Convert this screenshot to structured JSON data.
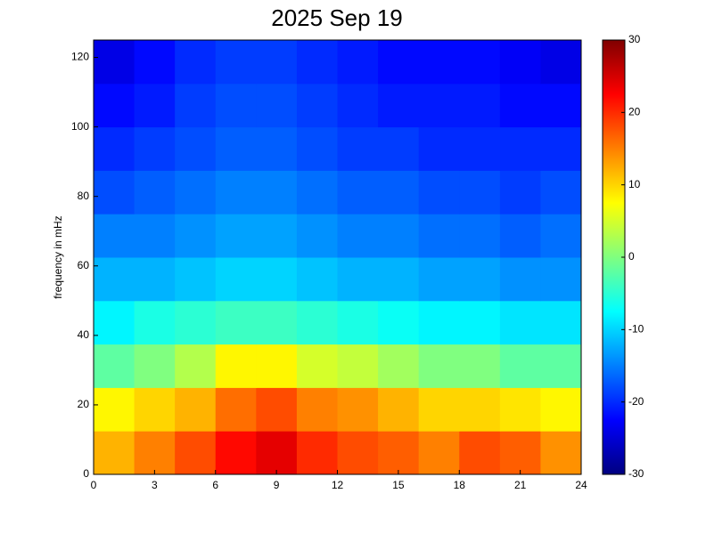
{
  "chart_data": {
    "type": "heatmap",
    "title": "2025 Sep 19",
    "y_label": "frequency in mHz",
    "xbins": [
      0,
      2,
      4,
      6,
      8,
      10,
      12,
      14,
      16,
      18,
      20,
      22,
      24
    ],
    "ybins": [
      0,
      12.5,
      25,
      37.5,
      50,
      62.5,
      75,
      87.5,
      100,
      112.5,
      125
    ],
    "values": [
      [
        12,
        15,
        18,
        22,
        24,
        20,
        18,
        17,
        15,
        18,
        17,
        14
      ],
      [
        8,
        10,
        12,
        16,
        18,
        15,
        14,
        12,
        10,
        10,
        9,
        8
      ],
      [
        -2,
        0,
        3,
        8,
        8,
        5,
        4,
        2,
        0,
        0,
        -2,
        -2
      ],
      [
        -8,
        -6,
        -5,
        -4,
        -4,
        -5,
        -6,
        -7,
        -8,
        -8,
        -9,
        -9
      ],
      [
        -12,
        -12,
        -11,
        -10,
        -10,
        -11,
        -12,
        -12,
        -13,
        -13,
        -14,
        -14
      ],
      [
        -15,
        -15,
        -14,
        -13,
        -13,
        -14,
        -15,
        -15,
        -16,
        -16,
        -17,
        -16
      ],
      [
        -18,
        -17,
        -16,
        -15,
        -15,
        -16,
        -17,
        -17,
        -18,
        -18,
        -19,
        -18
      ],
      [
        -20,
        -19,
        -18,
        -17,
        -17,
        -18,
        -19,
        -19,
        -20,
        -20,
        -20,
        -20
      ],
      [
        -22,
        -21,
        -19,
        -18,
        -18,
        -19,
        -20,
        -21,
        -21,
        -21,
        -22,
        -22
      ],
      [
        -24,
        -22,
        -20,
        -19,
        -19,
        -20,
        -21,
        -22,
        -22,
        -22,
        -23,
        -24
      ]
    ],
    "xlim": [
      0,
      24
    ],
    "xticks": [
      0,
      3,
      6,
      9,
      12,
      15,
      18,
      21,
      24
    ],
    "ylim": [
      0,
      125
    ],
    "yticks": [
      0,
      20,
      40,
      60,
      80,
      100,
      120
    ],
    "colormap": "jet",
    "clim": [
      -30,
      30
    ],
    "cticks": [
      -30,
      -20,
      -10,
      0,
      10,
      20,
      30
    ]
  }
}
